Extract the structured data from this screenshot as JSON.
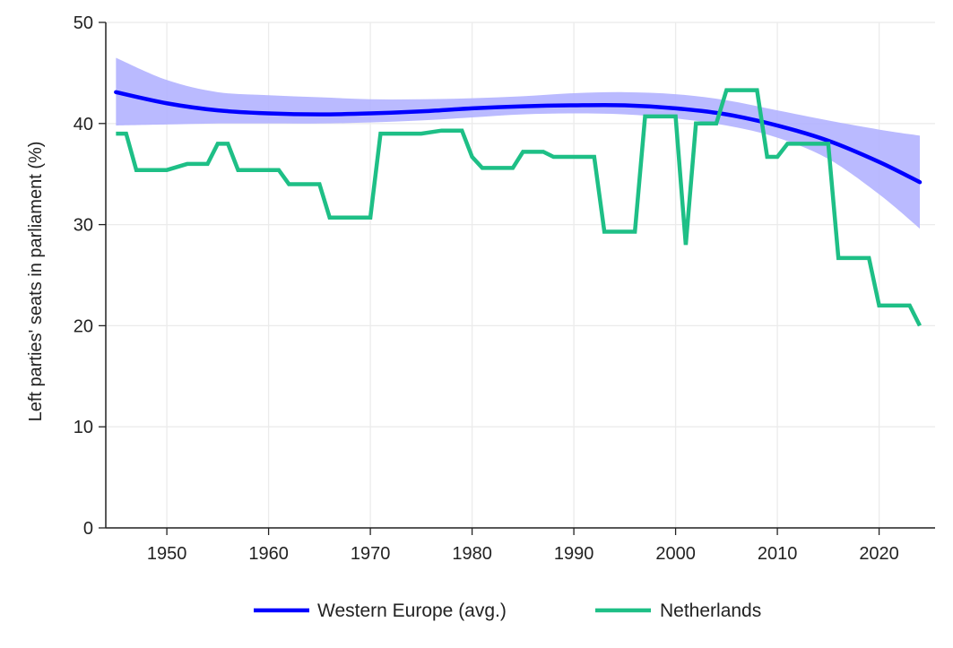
{
  "chart_data": {
    "type": "line",
    "title": "",
    "xlabel": "",
    "ylabel": "Left parties' seats in parliament (%)",
    "xlim": [
      1944,
      2025.5
    ],
    "ylim": [
      0,
      50
    ],
    "x_ticks": [
      1950,
      1960,
      1970,
      1980,
      1990,
      2000,
      2010,
      2020
    ],
    "y_ticks": [
      0,
      10,
      20,
      30,
      40,
      50
    ],
    "grid": true,
    "legend_position": "bottom",
    "series": [
      {
        "name": "Western Europe (avg.)",
        "kind": "smoothed-fit-with-ci",
        "color": "#0000ff",
        "band_color": "#b3b3ff",
        "x": [
          1945,
          1950,
          1955,
          1960,
          1965,
          1970,
          1975,
          1980,
          1985,
          1990,
          1995,
          2000,
          2005,
          2010,
          2015,
          2020,
          2024
        ],
        "y": [
          43.1,
          42.0,
          41.3,
          41.0,
          40.9,
          41.0,
          41.2,
          41.5,
          41.7,
          41.8,
          41.8,
          41.5,
          40.9,
          39.8,
          38.3,
          36.2,
          34.2
        ],
        "ci_lower": [
          39.8,
          39.9,
          40.0,
          40.0,
          40.0,
          40.1,
          40.3,
          40.6,
          40.9,
          41.0,
          40.9,
          40.5,
          39.8,
          38.6,
          36.5,
          33.0,
          29.6
        ],
        "ci_upper": [
          46.5,
          44.3,
          43.1,
          42.8,
          42.6,
          42.4,
          42.4,
          42.5,
          42.7,
          43.0,
          43.1,
          42.9,
          42.3,
          41.3,
          40.3,
          39.4,
          38.8
        ]
      },
      {
        "name": "Netherlands",
        "kind": "step",
        "color": "#1ebf86",
        "x": [
          1945,
          1946,
          1947,
          1948,
          1950,
          1952,
          1954,
          1955,
          1956,
          1957,
          1959,
          1961,
          1962,
          1963,
          1965,
          1966,
          1967,
          1968,
          1970,
          1971,
          1972,
          1974,
          1975,
          1977,
          1978,
          1979,
          1980,
          1981,
          1982,
          1984,
          1985,
          1986,
          1987,
          1988,
          1989,
          1990,
          1991,
          1992,
          1993,
          1994,
          1996,
          1997,
          1998,
          2000,
          2001,
          2002,
          2003,
          2004,
          2005,
          2006,
          2007,
          2008,
          2009,
          2010,
          2011,
          2012,
          2015,
          2016,
          2017,
          2019,
          2020,
          2023,
          2024
        ],
        "y": [
          39.0,
          39.0,
          35.4,
          35.4,
          35.4,
          36.0,
          36.0,
          38.0,
          38.0,
          35.4,
          35.4,
          35.4,
          34.0,
          34.0,
          34.0,
          30.7,
          30.7,
          30.7,
          30.7,
          39.0,
          39.0,
          39.0,
          39.0,
          39.3,
          39.3,
          39.3,
          36.7,
          35.6,
          35.6,
          35.6,
          37.2,
          37.2,
          37.2,
          36.7,
          36.7,
          36.7,
          36.7,
          36.7,
          29.3,
          29.3,
          29.3,
          40.7,
          40.7,
          40.7,
          28.0,
          40.0,
          40.0,
          40.0,
          43.3,
          43.3,
          43.3,
          43.3,
          36.7,
          36.7,
          38.0,
          38.0,
          38.0,
          26.7,
          26.7,
          26.7,
          22.0,
          22.0,
          20.0
        ]
      }
    ]
  }
}
